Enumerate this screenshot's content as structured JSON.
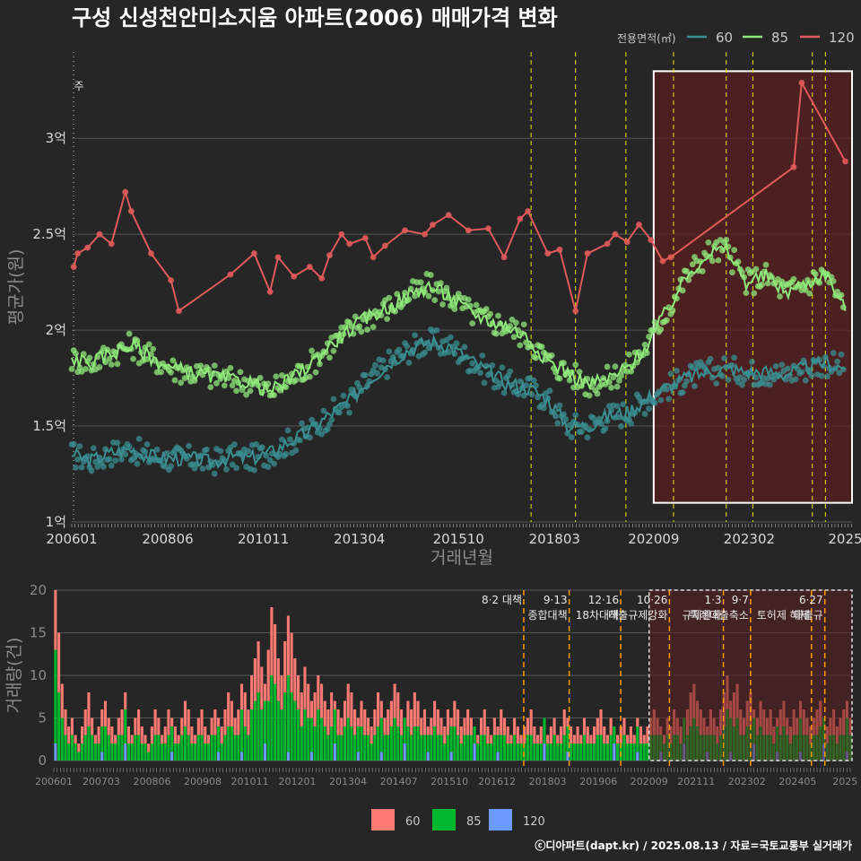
{
  "title": "구성 신성천안미소지움 아파트(2006) 매매가격 변화",
  "footer": "ⓒ디아파트(dapt.kr) / 2025.08.13 / 자료=국토교통부 실거래가",
  "colors": {
    "background": "#262626",
    "grid": "#555555",
    "s60": "#3a8f92",
    "s85": "#8fe87a",
    "s120": "#e05a5a",
    "bar60": "#ff7a72",
    "bar85": "#00b82e",
    "bar120": "#6b9bff",
    "policy": "#e6e600",
    "policy_bottom": "#ff9900",
    "highlight": "#5a1f1f"
  },
  "chart_data": [
    {
      "type": "line",
      "title": "구성 신성천안미소지움 아파트(2006) 매매가격 변화",
      "xlabel": "거래년월",
      "ylabel": "평균가(원)",
      "xlim": [
        2006.0,
        2025.67
      ],
      "ylim": [
        1.0,
        3.45
      ],
      "x_ticks": [
        {
          "v": 2006.0,
          "label": "200601"
        },
        {
          "v": 2008.42,
          "label": "200806"
        },
        {
          "v": 2010.83,
          "label": "201011"
        },
        {
          "v": 2013.25,
          "label": "201304"
        },
        {
          "v": 2015.75,
          "label": "201510"
        },
        {
          "v": 2018.17,
          "label": "201803"
        },
        {
          "v": 2020.67,
          "label": "202009"
        },
        {
          "v": 2023.08,
          "label": "202302"
        },
        {
          "v": 2025.5,
          "label": "2025"
        }
      ],
      "y_ticks": [
        {
          "v": 1.0,
          "label": "1억"
        },
        {
          "v": 1.5,
          "label": "1.5억"
        },
        {
          "v": 2.0,
          "label": "2억"
        },
        {
          "v": 2.5,
          "label": "2.5억"
        },
        {
          "v": 3.0,
          "label": "3억"
        }
      ],
      "legend_title": "전용면적(㎡)",
      "legend": [
        "60",
        "85",
        "120"
      ],
      "series": [
        {
          "name": "60",
          "color": "#3a8f92",
          "x": [
            2006.0,
            2006.5,
            2007.0,
            2007.5,
            2008.0,
            2008.5,
            2009.0,
            2009.5,
            2010.0,
            2010.5,
            2011.0,
            2011.5,
            2012.0,
            2012.5,
            2013.0,
            2013.5,
            2014.0,
            2014.5,
            2015.0,
            2015.5,
            2016.0,
            2016.5,
            2017.0,
            2017.5,
            2018.0,
            2018.5,
            2019.0,
            2019.5,
            2020.0,
            2020.5,
            2021.0,
            2021.5,
            2022.0,
            2022.5,
            2023.0,
            2023.5,
            2024.0,
            2024.5,
            2025.0,
            2025.5
          ],
          "y": [
            1.35,
            1.32,
            1.36,
            1.38,
            1.34,
            1.33,
            1.33,
            1.31,
            1.34,
            1.33,
            1.36,
            1.42,
            1.47,
            1.56,
            1.63,
            1.74,
            1.83,
            1.9,
            1.94,
            1.92,
            1.85,
            1.78,
            1.72,
            1.7,
            1.64,
            1.5,
            1.5,
            1.55,
            1.57,
            1.64,
            1.7,
            1.75,
            1.78,
            1.8,
            1.78,
            1.78,
            1.77,
            1.8,
            1.83,
            1.8
          ]
        },
        {
          "name": "85",
          "color": "#8fe87a",
          "x": [
            2006.0,
            2006.5,
            2007.0,
            2007.5,
            2008.0,
            2008.5,
            2009.0,
            2009.5,
            2010.0,
            2010.5,
            2011.0,
            2011.5,
            2012.0,
            2012.5,
            2013.0,
            2013.5,
            2014.0,
            2014.5,
            2015.0,
            2015.5,
            2016.0,
            2016.5,
            2017.0,
            2017.5,
            2018.0,
            2018.5,
            2019.0,
            2019.5,
            2020.0,
            2020.5,
            2021.0,
            2021.5,
            2022.0,
            2022.5,
            2023.0,
            2023.5,
            2024.0,
            2024.5,
            2025.0,
            2025.5
          ],
          "y": [
            1.85,
            1.83,
            1.88,
            1.92,
            1.86,
            1.8,
            1.78,
            1.76,
            1.74,
            1.73,
            1.68,
            1.74,
            1.82,
            1.92,
            2.0,
            2.07,
            2.12,
            2.18,
            2.23,
            2.18,
            2.1,
            2.05,
            2.02,
            1.96,
            1.84,
            1.78,
            1.72,
            1.74,
            1.8,
            1.92,
            2.1,
            2.28,
            2.4,
            2.42,
            2.25,
            2.28,
            2.2,
            2.24,
            2.3,
            2.1
          ]
        },
        {
          "name": "120",
          "color": "#e05a5a",
          "x": [
            2006.05,
            2006.15,
            2006.4,
            2006.7,
            2007.0,
            2007.35,
            2007.5,
            2008.0,
            2008.5,
            2008.7,
            2010.0,
            2010.6,
            2011.0,
            2011.2,
            2011.6,
            2012.0,
            2012.3,
            2012.5,
            2012.8,
            2013.0,
            2013.4,
            2013.6,
            2013.9,
            2014.4,
            2014.9,
            2015.1,
            2015.5,
            2016.0,
            2016.5,
            2016.9,
            2017.3,
            2017.5,
            2018.0,
            2018.3,
            2018.7,
            2019.0,
            2019.5,
            2019.7,
            2020.0,
            2020.3,
            2020.6,
            2020.9,
            2021.1,
            2024.2,
            2024.4,
            2025.5
          ],
          "y": [
            2.33,
            2.4,
            2.43,
            2.5,
            2.45,
            2.72,
            2.62,
            2.4,
            2.26,
            2.1,
            2.29,
            2.4,
            2.2,
            2.38,
            2.28,
            2.33,
            2.27,
            2.39,
            2.5,
            2.45,
            2.48,
            2.38,
            2.44,
            2.52,
            2.5,
            2.55,
            2.6,
            2.52,
            2.53,
            2.38,
            2.58,
            2.62,
            2.4,
            2.42,
            2.1,
            2.4,
            2.45,
            2.5,
            2.46,
            2.55,
            2.47,
            2.36,
            2.38,
            2.85,
            3.29,
            2.88
          ]
        }
      ],
      "policy_lines": [
        2017.58,
        2018.7,
        2019.97,
        2021.17,
        2022.5,
        2023.17,
        2024.67,
        2025.0
      ],
      "highlight": {
        "x0": 2020.67,
        "x1": 2025.67,
        "y0": 1.1,
        "y1": 3.35
      },
      "top_left_marker": "주"
    },
    {
      "type": "bar",
      "ylabel": "거래량(건)",
      "xlim": [
        2006.0,
        2025.67
      ],
      "ylim": [
        0,
        20
      ],
      "y_ticks": [
        0,
        5,
        10,
        15,
        20
      ],
      "x_ticks": [
        {
          "v": 2006.0,
          "label": "200601"
        },
        {
          "v": 2007.17,
          "label": "200703"
        },
        {
          "v": 2008.42,
          "label": "200806"
        },
        {
          "v": 2009.67,
          "label": "200908"
        },
        {
          "v": 2010.83,
          "label": "201011"
        },
        {
          "v": 2012.0,
          "label": "201201"
        },
        {
          "v": 2013.25,
          "label": "201304"
        },
        {
          "v": 2014.5,
          "label": "201407"
        },
        {
          "v": 2015.75,
          "label": "201510"
        },
        {
          "v": 2016.92,
          "label": "201612"
        },
        {
          "v": 2018.17,
          "label": "201803"
        },
        {
          "v": 2019.42,
          "label": "201906"
        },
        {
          "v": 2020.67,
          "label": "202009"
        },
        {
          "v": 2021.83,
          "label": "202111"
        },
        {
          "v": 2023.08,
          "label": "202302"
        },
        {
          "v": 2024.33,
          "label": "202405"
        },
        {
          "v": 2025.5,
          "label": "2025"
        }
      ],
      "legend": [
        "60",
        "85",
        "120"
      ],
      "monthly_totals": [
        20,
        15,
        9,
        6,
        4,
        5,
        3,
        2,
        4,
        6,
        8,
        5,
        3,
        4,
        6,
        7,
        5,
        4,
        3,
        5,
        6,
        8,
        4,
        3,
        5,
        6,
        4,
        3,
        2,
        4,
        6,
        5,
        3,
        4,
        6,
        5,
        4,
        3,
        5,
        7,
        6,
        4,
        3,
        5,
        6,
        4,
        3,
        5,
        6,
        5,
        4,
        6,
        8,
        7,
        5,
        6,
        9,
        8,
        6,
        10,
        12,
        14,
        11,
        9,
        13,
        18,
        16,
        12,
        10,
        14,
        17,
        15,
        12,
        10,
        8,
        11,
        9,
        7,
        8,
        10,
        9,
        7,
        6,
        8,
        7,
        6,
        5,
        7,
        9,
        8,
        6,
        5,
        7,
        6,
        5,
        4,
        6,
        8,
        7,
        5,
        6,
        7,
        9,
        8,
        6,
        5,
        7,
        6,
        8,
        7,
        5,
        6,
        4,
        5,
        7,
        6,
        5,
        4,
        6,
        5,
        7,
        6,
        4,
        5,
        6,
        5,
        4,
        3,
        5,
        6,
        4,
        3,
        5,
        4,
        6,
        5,
        4,
        3,
        5,
        4,
        3,
        4,
        5,
        6,
        4,
        3,
        4,
        5,
        3,
        4,
        5,
        3,
        4,
        6,
        5,
        4,
        3,
        4,
        3,
        5,
        4,
        3,
        4,
        5,
        6,
        4,
        3,
        5,
        4,
        3,
        4,
        5,
        3,
        4,
        3,
        5,
        4,
        3,
        4,
        5,
        6,
        5,
        4,
        3,
        5,
        4,
        6,
        5,
        4,
        5,
        6,
        8,
        9,
        7,
        6,
        5,
        4,
        6,
        5,
        4,
        6,
        8,
        10,
        7,
        8,
        9,
        6,
        5,
        7,
        8,
        6,
        5,
        7,
        6,
        5,
        6,
        4,
        5,
        6,
        7,
        5,
        4,
        6,
        5,
        7,
        6,
        5,
        4,
        5,
        6,
        7,
        5,
        4,
        5,
        6,
        4,
        5,
        6,
        7,
        5
      ],
      "annotations": [
        {
          "x": 2017.58,
          "lines": [
            "8·2 대책"
          ]
        },
        {
          "x": 2018.7,
          "lines": [
            "9·13",
            "종합대책"
          ]
        },
        {
          "x": 2019.97,
          "lines": [
            "12·16",
            "18차대책"
          ]
        },
        {
          "x": 2021.17,
          "lines": [
            "10·26",
            "대출규제강화"
          ]
        },
        {
          "x": 2022.5,
          "lines": [
            "1·3",
            "규제완화"
          ]
        },
        {
          "x": 2023.17,
          "lines": [
            "9·7",
            "특례대출축소"
          ]
        },
        {
          "x": 2024.67,
          "lines": [
            "",
            "토허제 해제"
          ]
        },
        {
          "x": 2025.0,
          "lines": [
            "6·27",
            "대출규"
          ]
        }
      ]
    }
  ]
}
